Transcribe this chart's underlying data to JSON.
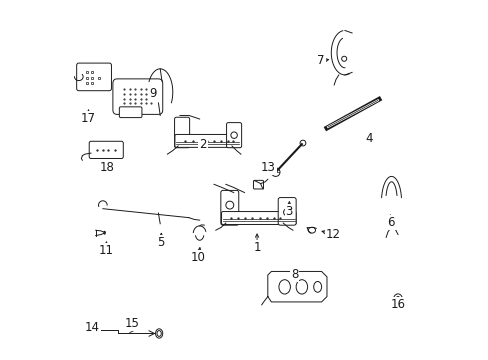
{
  "background_color": "#ffffff",
  "line_color": "#1a1a1a",
  "fig_width": 4.89,
  "fig_height": 3.6,
  "dpi": 100,
  "label_fontsize": 8.5,
  "label_positions": {
    "1": [
      0.535,
      0.31,
      0.535,
      0.35
    ],
    "2": [
      0.385,
      0.6,
      0.4,
      0.585
    ],
    "3": [
      0.625,
      0.41,
      0.638,
      0.455
    ],
    "4": [
      0.845,
      0.615,
      0.835,
      0.645
    ],
    "5": [
      0.265,
      0.325,
      0.265,
      0.365
    ],
    "6": [
      0.905,
      0.38,
      0.895,
      0.41
    ],
    "7": [
      0.715,
      0.83,
      0.745,
      0.835
    ],
    "8": [
      0.64,
      0.235,
      0.64,
      0.265
    ],
    "9": [
      0.245,
      0.745,
      0.255,
      0.72
    ],
    "10": [
      0.37,
      0.285,
      0.375,
      0.32
    ],
    "11": [
      0.115,
      0.305,
      0.115,
      0.34
    ],
    "12": [
      0.745,
      0.35,
      0.715,
      0.36
    ],
    "13": [
      0.565,
      0.535,
      0.555,
      0.51
    ],
    "14": [
      0.075,
      0.088,
      0.093,
      0.088
    ],
    "15": [
      0.185,
      0.1,
      0.175,
      0.088
    ],
    "16": [
      0.925,
      0.155,
      0.915,
      0.175
    ],
    "17": [
      0.065,
      0.675,
      0.065,
      0.705
    ],
    "18": [
      0.115,
      0.535,
      0.12,
      0.555
    ]
  }
}
